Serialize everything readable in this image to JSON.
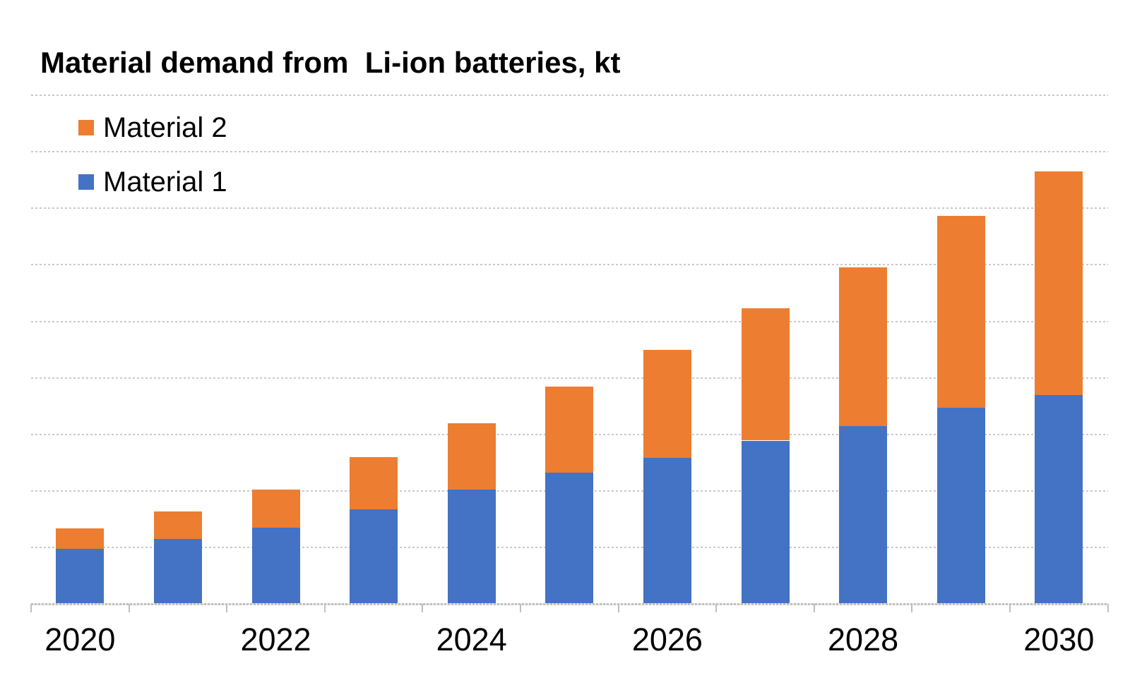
{
  "chart": {
    "legend": [
      {
        "label": "Material 2",
        "color": "#ED7D31"
      },
      {
        "label": "Material 1",
        "color": "#4472C4"
      }
    ]
  },
  "chart_data": {
    "type": "bar",
    "stacked": true,
    "title": "Material demand from  Li-ion batteries, kt",
    "unit": "kt",
    "categories": [
      "2020",
      "2021",
      "2022",
      "2023",
      "2024",
      "2025",
      "2026",
      "2027",
      "2028",
      "2029",
      "2030"
    ],
    "x_tick_labels": [
      "2020",
      "2022",
      "2024",
      "2026",
      "2028",
      "2030"
    ],
    "series": [
      {
        "name": "Material 1",
        "color": "#4472C4",
        "values": [
          0.97,
          1.15,
          1.35,
          1.67,
          2.02,
          2.32,
          2.59,
          2.89,
          3.15,
          3.47,
          3.7
        ]
      },
      {
        "name": "Material 2",
        "color": "#ED7D31",
        "values": [
          0.37,
          0.49,
          0.67,
          0.93,
          1.18,
          1.52,
          1.9,
          2.34,
          2.8,
          3.4,
          3.95
        ]
      }
    ],
    "stack_totals": [
      1.34,
      1.64,
      2.02,
      2.6,
      3.2,
      3.84,
      4.49,
      5.23,
      5.95,
      6.87,
      7.65
    ],
    "y_axis": {
      "tick_labels_shown": false,
      "ylim": [
        0,
        9
      ],
      "gridline_step": 1,
      "note": "y-axis is unlabeled; values estimated in gridline units"
    },
    "legend_position": "top-left vertical",
    "grid": true
  }
}
